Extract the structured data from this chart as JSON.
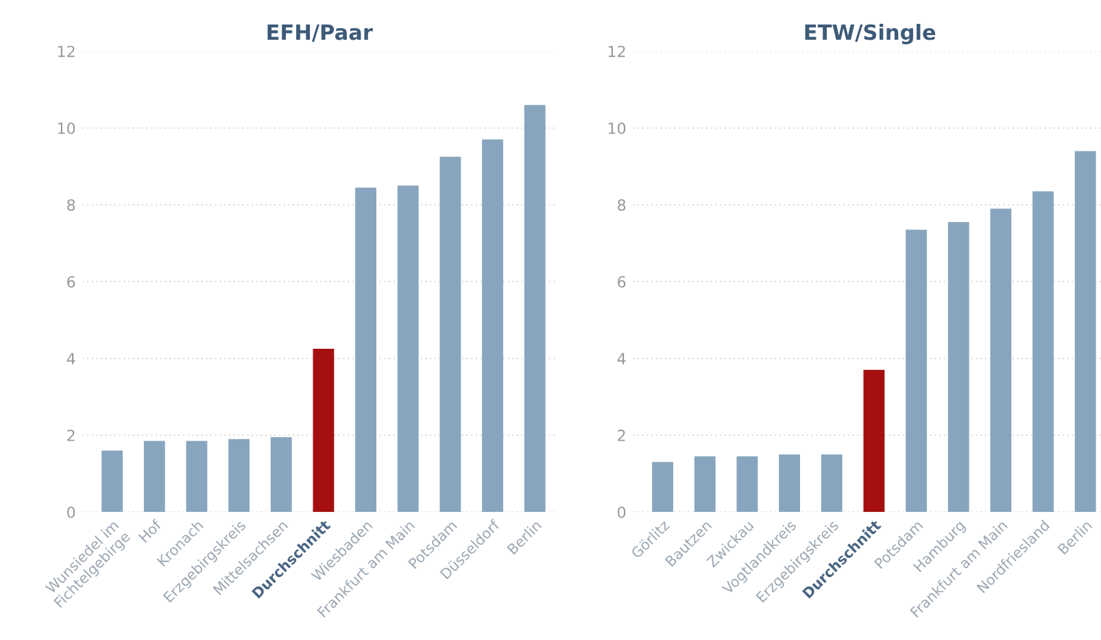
{
  "chart_data": [
    {
      "type": "bar",
      "title": "EFH/Paar",
      "categories": [
        "Wunsiedel im\nFichtelgebirge",
        "Hof",
        "Kronach",
        "Erzgebirgskreis",
        "Mittelsachsen",
        "Durchschnitt",
        "Wiesbaden",
        "Frankfurt am Main",
        "Potsdam",
        "Düsseldorf",
        "Berlin"
      ],
      "values": [
        1.6,
        1.85,
        1.85,
        1.9,
        1.95,
        4.25,
        8.45,
        8.5,
        9.25,
        9.7,
        10.6
      ],
      "colors": [
        "#87a5be",
        "#87a5be",
        "#87a5be",
        "#87a5be",
        "#87a5be",
        "#a50f0f",
        "#87a5be",
        "#87a5be",
        "#87a5be",
        "#87a5be",
        "#87a5be"
      ],
      "ylim": [
        0,
        12
      ],
      "yticks": [
        0,
        2,
        4,
        6,
        8,
        10,
        12
      ],
      "grid": "y"
    },
    {
      "type": "bar",
      "title": "ETW/Single",
      "categories": [
        "Görlitz",
        "Bautzen",
        "Zwickau",
        "Vogtlandkreis",
        "Erzgebirgskreis",
        "Durchschnitt",
        "Potsdam",
        "Hamburg",
        "Frankfurt am Main",
        "Nordfriesland",
        "Berlin"
      ],
      "values": [
        1.3,
        1.45,
        1.45,
        1.5,
        1.5,
        3.7,
        7.35,
        7.55,
        7.9,
        8.35,
        9.4
      ],
      "colors": [
        "#87a5be",
        "#87a5be",
        "#87a5be",
        "#87a5be",
        "#87a5be",
        "#a50f0f",
        "#87a5be",
        "#87a5be",
        "#87a5be",
        "#87a5be",
        "#87a5be"
      ],
      "ylim": [
        0,
        12
      ],
      "yticks": [
        0,
        2,
        4,
        6,
        8,
        10,
        12
      ],
      "grid": "y"
    }
  ]
}
